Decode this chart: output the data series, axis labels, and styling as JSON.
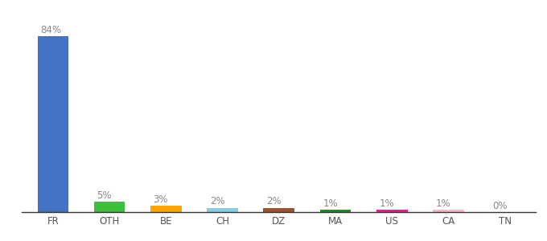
{
  "categories": [
    "FR",
    "OTH",
    "BE",
    "CH",
    "DZ",
    "MA",
    "US",
    "CA",
    "TN"
  ],
  "values": [
    84,
    5,
    3,
    2,
    2,
    1,
    1,
    1,
    0
  ],
  "labels": [
    "84%",
    "5%",
    "3%",
    "2%",
    "2%",
    "1%",
    "1%",
    "1%",
    "0%"
  ],
  "bar_colors": [
    "#4472C4",
    "#3DBE3D",
    "#FFA500",
    "#87CEEB",
    "#A0522D",
    "#228B22",
    "#FF1493",
    "#FFB6C1",
    "#999999"
  ],
  "background_color": "#ffffff",
  "label_color": "#888888",
  "label_fontsize": 8.5,
  "tick_fontsize": 8.5,
  "ylim": [
    0,
    92
  ],
  "figsize": [
    6.8,
    3.0
  ],
  "dpi": 100
}
